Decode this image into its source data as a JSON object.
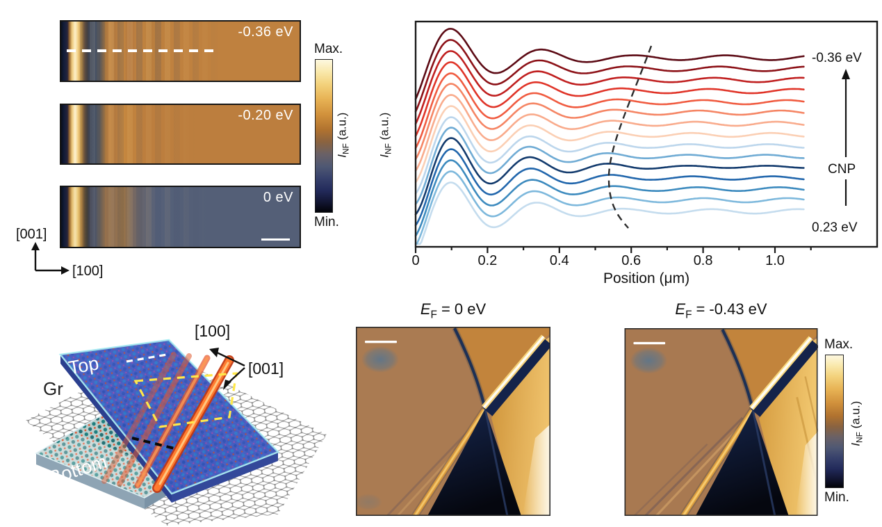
{
  "strips": {
    "items": [
      {
        "label": "-0.36 eV"
      },
      {
        "label": "-0.20 eV"
      },
      {
        "label": "0 eV"
      }
    ],
    "axis_vertical": "[001]",
    "axis_horizontal": "[100]"
  },
  "colorbar_left": {
    "max": "Max.",
    "min": "Min.",
    "sym": "I",
    "sub": "NF",
    "units": "(a.u.)"
  },
  "colorbar_right": {
    "max": "Max.",
    "min": "Min.",
    "sym": "I",
    "sub": "NF",
    "units": "(a.u.)"
  },
  "plot": {
    "ylabel_sym": "I",
    "ylabel_sub": "NF",
    "ylabel_units": "(a.u.)",
    "xlabel": "Position (μm)",
    "annotation_top": "-0.36 eV",
    "annotation_mid": "CNP",
    "annotation_bottom": "0.23 eV"
  },
  "schematic": {
    "label_top": "Top",
    "label_bottom": "Bottom",
    "label_graphene": "Gr",
    "dir_100": "[100]",
    "dir_001": "[001]"
  },
  "nf_images": [
    {
      "title_sym": "E",
      "title_sub": "F",
      "title_eq": "= 0 eV"
    },
    {
      "title_sym": "E",
      "title_sub": "F",
      "title_eq": "= -0.43 eV"
    }
  ],
  "palette": {
    "colormap_max": "#fdf8e0",
    "colormap_mid_orange": "#d1913c",
    "colormap_mid_blue": "#36406b",
    "colormap_min": "#020308",
    "soliton_red": "#ff7a2e",
    "slab_blue": "#5468cf",
    "dashed_guide": "#2b2b2b"
  },
  "chart_data": {
    "type": "line",
    "title": "",
    "xlabel": "Position (μm)",
    "ylabel": "I_NF (a.u.)",
    "x_range": [
      0,
      1.12
    ],
    "grid": false,
    "legend": "right-side energy arrow from 0.23 eV through CNP up to -0.36 eV",
    "x_ticks": [
      {
        "v": 0.0,
        "label": "0"
      },
      {
        "v": 0.2,
        "label": "0.2"
      },
      {
        "v": 0.4,
        "label": "0.4"
      },
      {
        "v": 0.6,
        "label": "0.6"
      },
      {
        "v": 0.8,
        "label": "0.8"
      },
      {
        "v": 1.0,
        "label": "1.0"
      }
    ],
    "x_minor_ticks": [
      0.1,
      0.3,
      0.5,
      0.7,
      0.9,
      1.1
    ],
    "annotations": {
      "top": "-0.36 eV",
      "middle": "CNP",
      "bottom": "0.23 eV",
      "arrow_direction": "up"
    },
    "curve_model": "y = base_y - max(69*exp(-x/0.2), tail) * cos(2*pi*(x-0.105)/lambda); damped spatial oscillation, first peak at 0.105 um, drawn for x = 0 to 1.08 um; vertical offsets in SVG px (a.u.)",
    "series": [
      {
        "name": "curve-01 (-0.36 eV)",
        "color": "#5c0a14",
        "base_y": 83,
        "lambda": 0.2525,
        "tail": 3.4
      },
      {
        "name": "curve-02",
        "color": "#8c1117",
        "base_y": 99,
        "lambda": 0.247,
        "tail": 3.3
      },
      {
        "name": "curve-03",
        "color": "#c01f1f",
        "base_y": 115,
        "lambda": 0.242,
        "tail": 3.2
      },
      {
        "name": "curve-04",
        "color": "#e03428",
        "base_y": 131,
        "lambda": 0.237,
        "tail": 3.1
      },
      {
        "name": "curve-05",
        "color": "#f05b40",
        "base_y": 147,
        "lambda": 0.232,
        "tail": 3.0
      },
      {
        "name": "curve-06",
        "color": "#f58564",
        "base_y": 162,
        "lambda": 0.228,
        "tail": 3.0
      },
      {
        "name": "curve-07",
        "color": "#f9ab8c",
        "base_y": 178,
        "lambda": 0.2245,
        "tail": 2.9
      },
      {
        "name": "curve-08",
        "color": "#fbcfb4",
        "base_y": 194,
        "lambda": 0.221,
        "tail": 2.8
      },
      {
        "name": "curve-09",
        "color": "#bcd6ec",
        "base_y": 210,
        "lambda": 0.219,
        "tail": 2.6
      },
      {
        "name": "curve-10",
        "color": "#6fabd4",
        "base_y": 225,
        "lambda": 0.2175,
        "tail": 2.4
      },
      {
        "name": "curve-11 (CNP)",
        "color": "#123a6d",
        "base_y": 240,
        "lambda": 0.2185,
        "tail": 1.6
      },
      {
        "name": "curve-12",
        "color": "#2166ac",
        "base_y": 256,
        "lambda": 0.222,
        "tail": 2.4
      },
      {
        "name": "curve-13",
        "color": "#3c8abe",
        "base_y": 272,
        "lambda": 0.2265,
        "tail": 2.7
      },
      {
        "name": "curve-14",
        "color": "#7db8dc",
        "base_y": 288,
        "lambda": 0.2325,
        "tail": 3.0
      },
      {
        "name": "curve-15 (0.23 eV)",
        "color": "#c4dcee",
        "base_y": 304,
        "lambda": 0.2395,
        "tail": 3.2
      }
    ]
  }
}
